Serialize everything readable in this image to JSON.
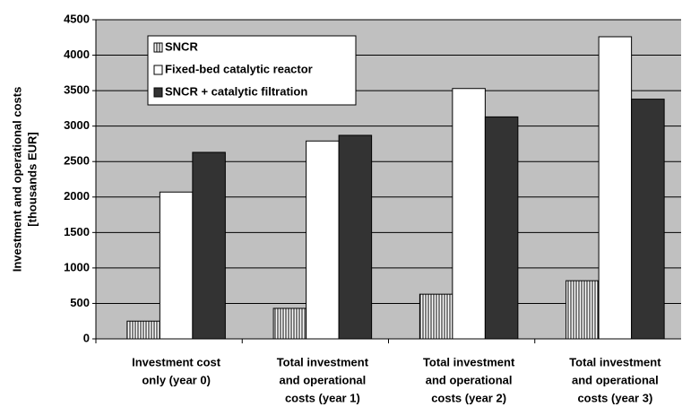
{
  "chart_data": {
    "type": "bar",
    "y_label": [
      "Investment and operational costs",
      "[thousands EUR]"
    ],
    "categories": [
      [
        "Investment cost",
        "only (year 0)"
      ],
      [
        "Total investment",
        "and operational",
        "costs (year 1)"
      ],
      [
        "Total investment",
        "and operational",
        "costs (year 2)"
      ],
      [
        "Total investment",
        "and operational",
        "costs (year 3)"
      ]
    ],
    "series": [
      {
        "name": "SNCR",
        "color": "#000000",
        "pattern": "vertical-stripes",
        "values": [
          250,
          430,
          630,
          820
        ]
      },
      {
        "name": "Fixed-bed catalytic reactor",
        "color": "#ffffff",
        "values": [
          2070,
          2790,
          3530,
          4260
        ]
      },
      {
        "name": "SNCR + catalytic filtration",
        "color": "#333333",
        "values": [
          2630,
          2870,
          3130,
          3380
        ]
      }
    ],
    "ylim": [
      0,
      4500
    ],
    "yticks": [
      0,
      500,
      1000,
      1500,
      2000,
      2500,
      3000,
      3500,
      4000,
      4500
    ],
    "grid": true,
    "legend": "top-left"
  }
}
